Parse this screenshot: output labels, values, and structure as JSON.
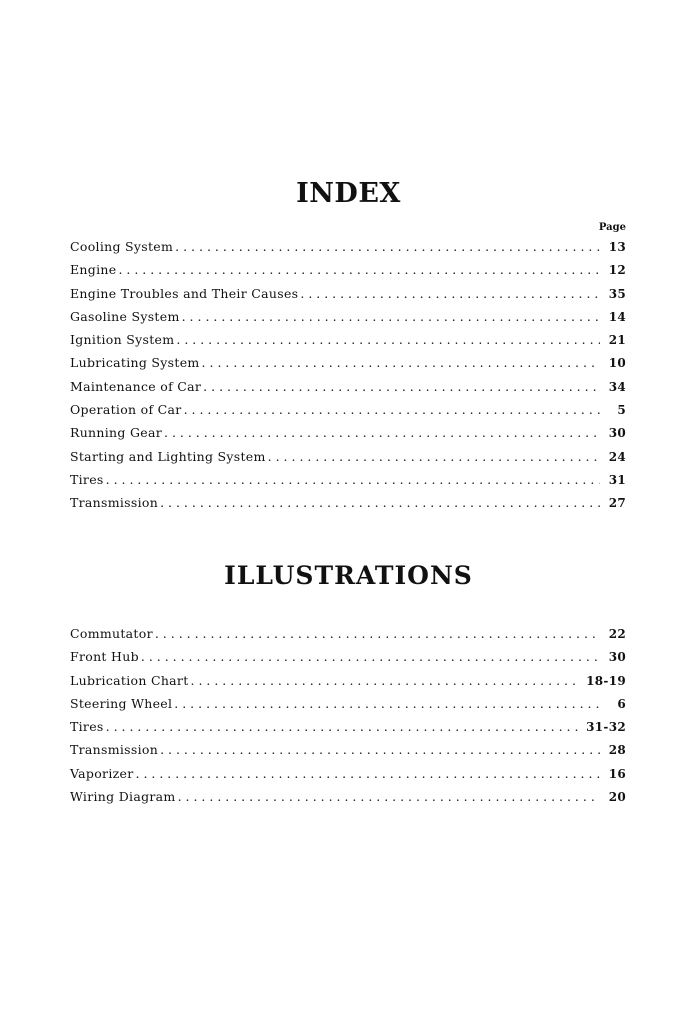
{
  "index": {
    "title": "INDEX",
    "page_header": "Page",
    "entries": [
      {
        "label": "Cooling System",
        "page": "13"
      },
      {
        "label": "Engine",
        "page": "12"
      },
      {
        "label": "Engine Troubles and Their Causes",
        "page": "35"
      },
      {
        "label": "Gasoline System",
        "page": "14"
      },
      {
        "label": "Ignition System",
        "page": "21"
      },
      {
        "label": "Lubricating System",
        "page": "10"
      },
      {
        "label": "Maintenance of Car",
        "page": "34"
      },
      {
        "label": "Operation of Car",
        "page": "5"
      },
      {
        "label": "Running Gear",
        "page": "30"
      },
      {
        "label": "Starting and Lighting System",
        "page": "24"
      },
      {
        "label": "Tires",
        "page": "31"
      },
      {
        "label": "Transmission",
        "page": "27"
      }
    ]
  },
  "illustrations": {
    "title": "ILLUSTRATIONS",
    "entries": [
      {
        "label": "Commutator",
        "page": "22"
      },
      {
        "label": "Front Hub",
        "page": "30"
      },
      {
        "label": "Lubrication Chart",
        "page": "18-19"
      },
      {
        "label": "Steering Wheel",
        "page": "6"
      },
      {
        "label": "Tires",
        "page": "31-32"
      },
      {
        "label": "Transmission",
        "page": "28"
      },
      {
        "label": "Vaporizer",
        "page": "16"
      },
      {
        "label": "Wiring Diagram",
        "page": "20"
      }
    ]
  }
}
